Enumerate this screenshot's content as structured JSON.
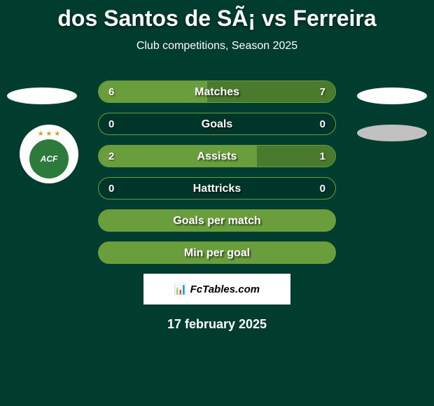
{
  "title": "dos Santos de SÃ¡ vs Ferreira",
  "subtitle": "Club competitions, Season 2025",
  "badge": {
    "text": "ACF",
    "stars": "★ ★ ★"
  },
  "stats": [
    {
      "label": "Matches",
      "left_value": "6",
      "right_value": "7",
      "left_pct": 46,
      "right_pct": 54,
      "has_values": true
    },
    {
      "label": "Goals",
      "left_value": "0",
      "right_value": "0",
      "left_pct": 0,
      "right_pct": 0,
      "has_values": true
    },
    {
      "label": "Assists",
      "left_value": "2",
      "right_value": "1",
      "left_pct": 67,
      "right_pct": 33,
      "has_values": true
    },
    {
      "label": "Hattricks",
      "left_value": "0",
      "right_value": "0",
      "left_pct": 0,
      "right_pct": 0,
      "has_values": true
    },
    {
      "label": "Goals per match",
      "has_values": false
    },
    {
      "label": "Min per goal",
      "has_values": false
    }
  ],
  "attribution": "FcTables.com",
  "date": "17 february 2025",
  "colors": {
    "background": "#003d2e",
    "bar_fill_left": "#6a9e3d",
    "bar_fill_right": "#4a7a2d",
    "text": "#ffffff"
  }
}
